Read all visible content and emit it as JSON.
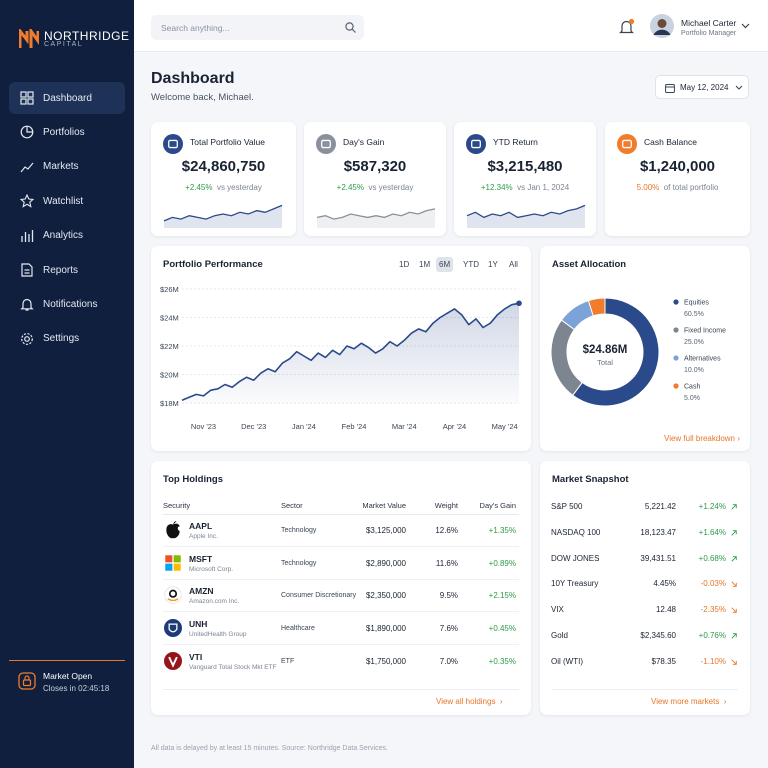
{
  "brand": {
    "name": "NORTHRIDGE",
    "sub": "CAPITAL"
  },
  "search_placeholder": "Search anything...",
  "user": {
    "name": "Michael Carter",
    "role": "Portfolio Manager"
  },
  "nav": [
    "Dashboard",
    "Portfolios",
    "Markets",
    "Watchlist",
    "Analytics",
    "Reports",
    "Notifications",
    "Settings"
  ],
  "market_status": {
    "title": "Market Open",
    "detail": "Closes in 02:45:18"
  },
  "header": {
    "title": "Dashboard",
    "subtitle": "Welcome back, Michael.",
    "date": "May 12, 2024"
  },
  "kpis": [
    {
      "label": "Total Portfolio Value",
      "value": "$24,860,750",
      "change": "+2.45%",
      "note": "vs yesterday"
    },
    {
      "label": "Day's Gain",
      "value": "$587,320",
      "change": "+2.45%",
      "note": "vs yesterday"
    },
    {
      "label": "YTD Return",
      "value": "$3,215,480",
      "change": "+12.34%",
      "note": "vs Jan 1, 2024"
    },
    {
      "label": "Cash Balance",
      "value": "$1,240,000",
      "change": "5.00%",
      "note": "of total portfolio"
    }
  ],
  "performance_controls": {
    "options": [
      "1D",
      "1M",
      "6M",
      "YTD",
      "1Y",
      "All"
    ],
    "active_index": 2
  },
  "chart_data": [
    {
      "type": "line",
      "title": "Portfolio Performance",
      "color": "#2b4a8b",
      "grid": true,
      "categories": [
        null,
        null,
        null,
        "Nov '23",
        null,
        null,
        null,
        null,
        null,
        null,
        "Dec '23",
        null,
        null,
        null,
        null,
        null,
        null,
        "Jan '24",
        null,
        null,
        null,
        null,
        null,
        null,
        "Feb '24",
        null,
        null,
        null,
        null,
        null,
        null,
        "Mar '24",
        null,
        null,
        null,
        null,
        null,
        null,
        "Apr '24",
        null,
        null,
        null,
        null,
        null,
        null,
        "May '24",
        null,
        null
      ],
      "values": [
        18.2,
        18.4,
        18.6,
        18.5,
        18.9,
        19.0,
        19.3,
        19.1,
        19.5,
        19.8,
        19.6,
        20.1,
        20.4,
        20.2,
        20.8,
        21.1,
        21.6,
        21.3,
        21.0,
        21.5,
        21.2,
        21.7,
        21.4,
        22.0,
        21.8,
        22.2,
        21.9,
        21.5,
        21.8,
        22.3,
        22.0,
        22.4,
        22.9,
        23.2,
        23.0,
        23.6,
        24.0,
        24.3,
        24.6,
        24.2,
        23.5,
        23.9,
        23.3,
        23.6,
        24.2,
        24.6,
        24.9,
        25.0
      ],
      "ylim": [
        18,
        26
      ],
      "yticks": [
        {
          "value": 18,
          "label": "$18M"
        },
        {
          "value": 20,
          "label": "$20M"
        },
        {
          "value": 22,
          "label": "$22M"
        },
        {
          "value": 24,
          "label": "$24M"
        },
        {
          "value": 26,
          "label": "$26M"
        }
      ]
    },
    {
      "type": "pie",
      "title": "Asset Allocation",
      "center_label": "$24.86M",
      "center_sub": "Total",
      "categories": [
        "Equities",
        "Fixed Income",
        "Alternatives",
        "Cash"
      ],
      "values": [
        60.5,
        25,
        10,
        5
      ],
      "value_labels": [
        "60.5%",
        "25.0%",
        "10.0%",
        "5.0%"
      ],
      "colors": [
        "#2b4a8b",
        "#7d8591",
        "#7ba3d8",
        "#f07c2c"
      ],
      "link": "View full breakdown"
    },
    {
      "type": "sparkline",
      "color": "#2b4a8b",
      "ylim": [
        0,
        14
      ],
      "values": [
        3,
        5,
        4,
        6,
        5,
        4,
        6,
        7,
        6,
        8,
        7,
        9,
        8,
        10,
        12
      ]
    },
    {
      "type": "sparkline",
      "color": "#8a919c",
      "ylim": [
        0,
        14
      ],
      "values": [
        5,
        6,
        4,
        5,
        7,
        6,
        5,
        6,
        5,
        7,
        6,
        8,
        7,
        9,
        10
      ]
    },
    {
      "type": "sparkline",
      "color": "#2b4a8b",
      "ylim": [
        0,
        14
      ],
      "values": [
        6,
        8,
        5,
        7,
        6,
        8,
        5,
        6,
        7,
        6,
        8,
        7,
        9,
        10,
        12
      ]
    }
  ],
  "holdings": {
    "title": "Top Holdings",
    "columns": [
      "Security",
      "Sector",
      "Market Value",
      "Weight",
      "Day's Gain"
    ],
    "rows": [
      {
        "ticker": "AAPL",
        "name": "Apple Inc.",
        "sector": "Technology",
        "market_value": "$3,125,000",
        "weight": "12.6%",
        "gain": "+1.35%"
      },
      {
        "ticker": "MSFT",
        "name": "Microsoft Corp.",
        "sector": "Technology",
        "market_value": "$2,890,000",
        "weight": "11.6%",
        "gain": "+0.89%"
      },
      {
        "ticker": "AMZN",
        "name": "Amazon.com Inc.",
        "sector": "Consumer Discretionary",
        "market_value": "$2,350,000",
        "weight": "9.5%",
        "gain": "+2.15%"
      },
      {
        "ticker": "UNH",
        "name": "UnitedHealth Group",
        "sector": "Healthcare",
        "market_value": "$1,890,000",
        "weight": "7.6%",
        "gain": "+0.45%"
      },
      {
        "ticker": "VTI",
        "name": "Vanguard Total Stock Mkt ETF",
        "sector": "ETF",
        "market_value": "$1,750,000",
        "weight": "7.0%",
        "gain": "+0.35%"
      }
    ],
    "link": "View all holdings"
  },
  "snapshot": {
    "title": "Market Snapshot",
    "rows": [
      {
        "name": "S&P 500",
        "value": "5,221.42",
        "change": "+1.24%"
      },
      {
        "name": "NASDAQ 100",
        "value": "18,123.47",
        "change": "+1.64%"
      },
      {
        "name": "DOW JONES",
        "value": "39,431.51",
        "change": "+0.68%"
      },
      {
        "name": "10Y Treasury",
        "value": "4.45%",
        "change": "-0.03%"
      },
      {
        "name": "VIX",
        "value": "12.48",
        "change": "-2.35%"
      },
      {
        "name": "Gold",
        "value": "$2,345.60",
        "change": "+0.76%"
      },
      {
        "name": "Oil (WTI)",
        "value": "$78.35",
        "change": "-1.10%"
      }
    ],
    "link": "View more markets"
  },
  "footer": "All data is delayed by at least 15 minutes. Source: Northridge Data Services."
}
